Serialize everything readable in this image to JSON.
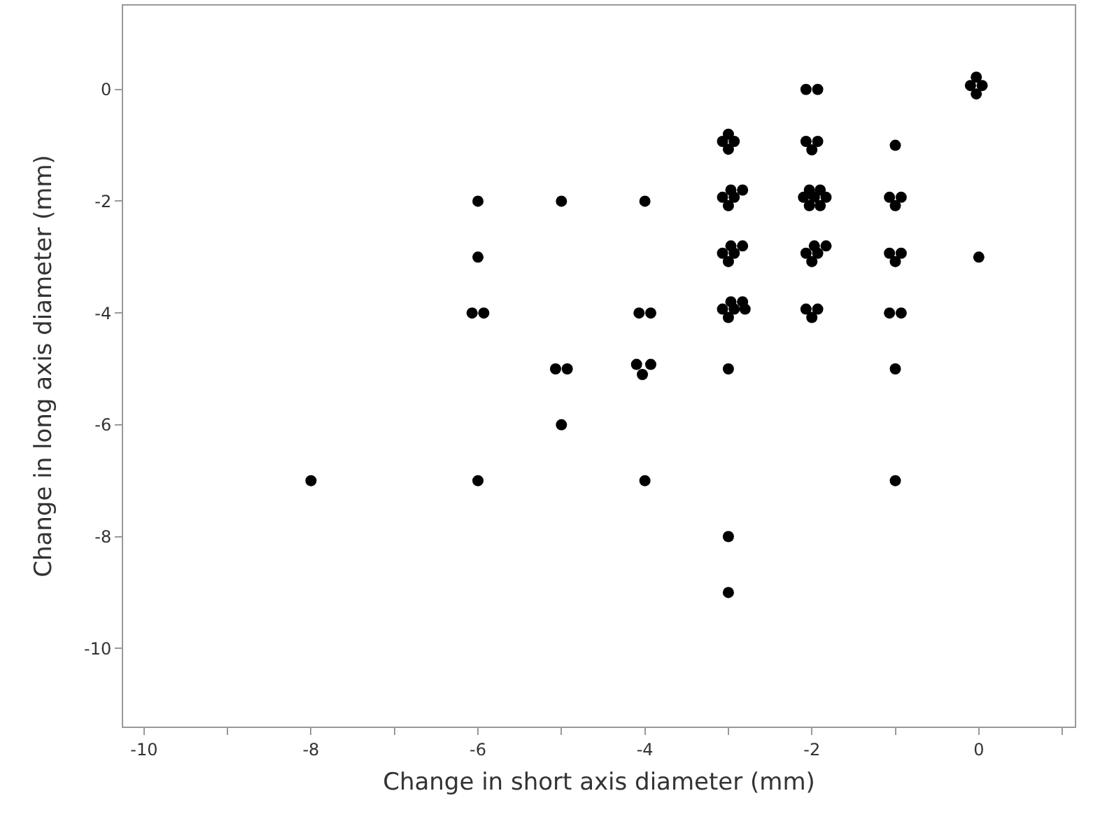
{
  "chart_data": {
    "type": "scatter",
    "xlabel": "Change in short axis diameter (mm)",
    "ylabel": "Change in long axis diameter (mm)",
    "x": [
      -8,
      -6,
      -6,
      -6.07,
      -5.93,
      -6,
      -5,
      -5.07,
      -4.93,
      -5,
      -4,
      -4.07,
      -3.93,
      -4.1,
      -3.93,
      -4.03,
      -4,
      -3,
      -3.07,
      -2.93,
      -3,
      -2.97,
      -2.83,
      -3.07,
      -2.93,
      -3,
      -2.97,
      -2.83,
      -3.07,
      -2.93,
      -3,
      -2.97,
      -2.83,
      -3.07,
      -2.93,
      -2.8,
      -3,
      -3,
      -3,
      -3,
      -2.07,
      -1.93,
      -2.07,
      -1.93,
      -2,
      -2.03,
      -1.9,
      -2.1,
      -1.97,
      -1.83,
      -2.03,
      -1.9,
      -1.97,
      -1.83,
      -2.07,
      -1.93,
      -2,
      -2.07,
      -1.93,
      -2,
      -1,
      -1.07,
      -0.93,
      -1,
      -1.07,
      -0.93,
      -1,
      -1.07,
      -0.93,
      -1,
      -1,
      -0.03,
      -0.1,
      0.04,
      -0.03,
      0
    ],
    "values": [
      -7,
      -2,
      -3,
      -4,
      -4,
      -7,
      -2,
      -5,
      -5,
      -6,
      -2,
      -4,
      -4,
      -4.92,
      -4.92,
      -5.1,
      -7,
      -0.8,
      -0.93,
      -0.93,
      -1.07,
      -1.8,
      -1.8,
      -1.93,
      -1.93,
      -2.08,
      -2.8,
      -2.8,
      -2.93,
      -2.93,
      -3.08,
      -3.8,
      -3.8,
      -3.93,
      -3.93,
      -3.93,
      -4.08,
      -5,
      -8,
      -9,
      0,
      0,
      -0.93,
      -0.93,
      -1.08,
      -1.8,
      -1.8,
      -1.93,
      -1.93,
      -1.93,
      -2.08,
      -2.08,
      -2.8,
      -2.8,
      -2.93,
      -2.93,
      -3.08,
      -3.93,
      -3.93,
      -4.08,
      -1,
      -1.93,
      -1.93,
      -2.08,
      -2.93,
      -2.93,
      -3.08,
      -4,
      -4,
      -5,
      -7,
      0.22,
      0.07,
      0.07,
      -0.08,
      -3
    ],
    "color": "#000000",
    "marker": "circle",
    "xlim": [
      -10.25,
      1.15
    ],
    "ylim": [
      -11.4,
      1.5
    ],
    "xticks": [
      -10,
      {
        "value": -9,
        "label": null
      },
      -8,
      {
        "value": -7,
        "label": null
      },
      -6,
      {
        "value": -5,
        "label": null
      },
      -4,
      {
        "value": -3,
        "label": null
      },
      -2,
      {
        "value": -1,
        "label": null
      },
      0,
      {
        "value": 1,
        "label": null
      }
    ],
    "yticks": [
      0,
      -2,
      -4,
      -6,
      -8,
      -10
    ]
  }
}
